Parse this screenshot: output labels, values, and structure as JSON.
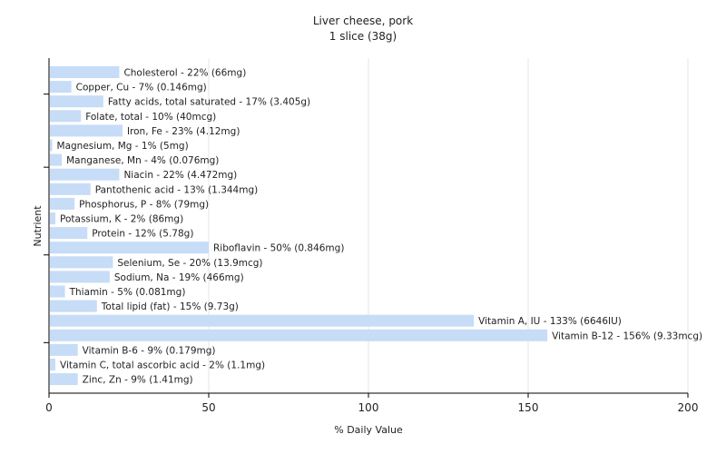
{
  "chart_data": {
    "type": "bar",
    "orientation": "horizontal",
    "title": "Liver cheese, pork",
    "subtitle": "1 slice (38g)",
    "xlabel": "% Daily Value",
    "ylabel": "Nutrient",
    "xlim": [
      0,
      200
    ],
    "xticks": [
      "0",
      "50",
      "100",
      "150",
      "200"
    ],
    "grid": true,
    "bar_color": "#c6dcf7",
    "categories": [
      "Cholesterol",
      "Copper, Cu",
      "Fatty acids, total saturated",
      "Folate, total",
      "Iron, Fe",
      "Magnesium, Mg",
      "Manganese, Mn",
      "Niacin",
      "Pantothenic acid",
      "Phosphorus, P",
      "Potassium, K",
      "Protein",
      "Riboflavin",
      "Selenium, Se",
      "Sodium, Na",
      "Thiamin",
      "Total lipid (fat)",
      "Vitamin A, IU",
      "Vitamin B-12",
      "Vitamin B-6",
      "Vitamin C, total ascorbic acid",
      "Zinc, Zn"
    ],
    "values": [
      22,
      7,
      17,
      10,
      23,
      1,
      4,
      22,
      13,
      8,
      2,
      12,
      50,
      20,
      19,
      5,
      15,
      133,
      156,
      9,
      2,
      9
    ],
    "labels": [
      "Cholesterol - 22% (66mg)",
      "Copper, Cu - 7% (0.146mg)",
      "Fatty acids, total saturated - 17% (3.405g)",
      "Folate, total - 10% (40mcg)",
      "Iron, Fe - 23% (4.12mg)",
      "Magnesium, Mg - 1% (5mg)",
      "Manganese, Mn - 4% (0.076mg)",
      "Niacin - 22% (4.472mg)",
      "Pantothenic acid - 13% (1.344mg)",
      "Phosphorus, P - 8% (79mg)",
      "Potassium, K - 2% (86mg)",
      "Protein - 12% (5.78g)",
      "Riboflavin - 50% (0.846mg)",
      "Selenium, Se - 20% (13.9mcg)",
      "Sodium, Na - 19% (466mg)",
      "Thiamin - 5% (0.081mg)",
      "Total lipid (fat) - 15% (9.73g)",
      "Vitamin A, IU - 133% (6646IU)",
      "Vitamin B-12 - 156% (9.33mcg)",
      "Vitamin B-6 - 9% (0.179mg)",
      "Vitamin C, total ascorbic acid - 2% (1.1mg)",
      "Zinc, Zn - 9% (1.41mg)"
    ]
  }
}
